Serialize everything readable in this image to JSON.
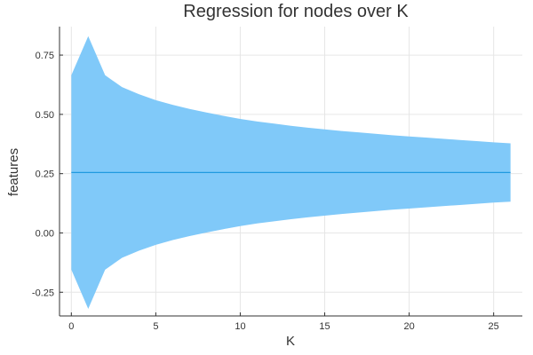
{
  "chart_data": {
    "type": "area",
    "title": "Regression for nodes over K",
    "xlabel": "K",
    "ylabel": "features",
    "xlim": [
      -0.7,
      26.7
    ],
    "ylim": [
      -0.35,
      0.87
    ],
    "xticks": [
      0,
      5,
      10,
      15,
      20,
      25
    ],
    "xtick_labels": [
      "0",
      "5",
      "10",
      "15",
      "20",
      "25"
    ],
    "yticks": [
      -0.25,
      0.0,
      0.25,
      0.5,
      0.75
    ],
    "ytick_labels": [
      "-0.25",
      "0.00",
      "0.25",
      "0.50",
      "0.75"
    ],
    "grid": true,
    "legend": "none",
    "band_color": "#80c9f9",
    "line_color": "#1f9ae0",
    "series": [
      {
        "x": [
          0,
          1,
          2,
          3,
          4,
          5,
          6,
          7,
          8,
          9,
          10,
          11,
          12,
          13,
          14,
          15,
          16,
          17,
          18,
          19,
          20,
          21,
          22,
          23,
          24,
          25,
          26
        ],
        "center": [
          0.255,
          0.255,
          0.255,
          0.255,
          0.255,
          0.255,
          0.255,
          0.255,
          0.255,
          0.255,
          0.255,
          0.255,
          0.255,
          0.255,
          0.255,
          0.255,
          0.255,
          0.255,
          0.255,
          0.255,
          0.255,
          0.255,
          0.255,
          0.255,
          0.255,
          0.255,
          0.255
        ],
        "upper": [
          0.665,
          0.83,
          0.665,
          0.615,
          0.585,
          0.56,
          0.54,
          0.523,
          0.508,
          0.494,
          0.481,
          0.47,
          0.461,
          0.452,
          0.444,
          0.437,
          0.43,
          0.424,
          0.418,
          0.412,
          0.407,
          0.402,
          0.397,
          0.392,
          0.387,
          0.382,
          0.378
        ],
        "lower": [
          -0.155,
          -0.32,
          -0.155,
          -0.105,
          -0.075,
          -0.05,
          -0.03,
          -0.013,
          0.002,
          0.016,
          0.029,
          0.04,
          0.049,
          0.058,
          0.066,
          0.073,
          0.08,
          0.086,
          0.092,
          0.098,
          0.103,
          0.108,
          0.113,
          0.118,
          0.123,
          0.128,
          0.132
        ]
      }
    ]
  }
}
